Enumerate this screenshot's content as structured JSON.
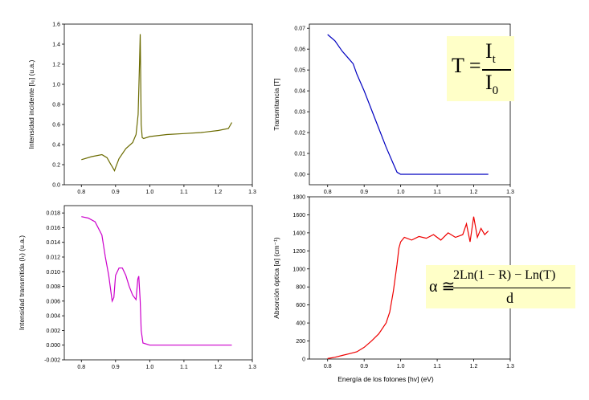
{
  "xlabel_shared": "Energía de los fotones [hv] (eV)",
  "formulas": {
    "transmittance": {
      "lhs": "T =",
      "num": "I",
      "num_sub": "t",
      "den": "I",
      "den_sub": "0"
    },
    "absorption": {
      "lhs": "α ≅",
      "num": "2Ln(1 − R) − Ln(T)",
      "den": "d"
    }
  },
  "chart_data": [
    {
      "id": "incident",
      "type": "line",
      "color": "#6b6b00",
      "ylabel": "Intensidad incidente [I₀] (u.a.)",
      "xlim": [
        0.75,
        1.3
      ],
      "ylim": [
        0.0,
        1.6
      ],
      "xticks": [
        "0.8",
        "0.9",
        "1.0",
        "1.1",
        "1.2",
        "1.3"
      ],
      "yticks": [
        "0.0",
        "0.2",
        "0.4",
        "0.6",
        "0.8",
        "1.0",
        "1.2",
        "1.4",
        "1.6"
      ],
      "x": [
        0.8,
        0.83,
        0.86,
        0.875,
        0.885,
        0.892,
        0.897,
        0.9,
        0.91,
        0.93,
        0.95,
        0.96,
        0.966,
        0.97,
        0.972,
        0.975,
        0.978,
        0.982,
        1.0,
        1.05,
        1.1,
        1.15,
        1.2,
        1.23,
        1.24
      ],
      "y": [
        0.25,
        0.28,
        0.3,
        0.27,
        0.21,
        0.17,
        0.14,
        0.17,
        0.26,
        0.36,
        0.42,
        0.5,
        0.7,
        1.2,
        1.5,
        0.6,
        0.47,
        0.46,
        0.48,
        0.5,
        0.51,
        0.52,
        0.54,
        0.56,
        0.62
      ]
    },
    {
      "id": "transmittance",
      "type": "line",
      "color": "#0000c0",
      "ylabel": "Transmitancia [T]",
      "xlim": [
        0.75,
        1.3
      ],
      "ylim": [
        -0.005,
        0.072
      ],
      "xticks": [
        "0.8",
        "0.9",
        "1.0",
        "1.1",
        "1.2",
        "1.3"
      ],
      "yticks": [
        "0.00",
        "0.01",
        "0.02",
        "0.03",
        "0.04",
        "0.05",
        "0.06",
        "0.07"
      ],
      "x": [
        0.8,
        0.82,
        0.84,
        0.86,
        0.87,
        0.88,
        0.9,
        0.92,
        0.94,
        0.96,
        0.98,
        0.99,
        1.0,
        1.05,
        1.1,
        1.15,
        1.2,
        1.24
      ],
      "y": [
        0.067,
        0.064,
        0.059,
        0.055,
        0.053,
        0.048,
        0.04,
        0.031,
        0.022,
        0.013,
        0.005,
        0.001,
        0.0,
        0.0,
        0.0,
        0.0,
        0.0,
        0.0
      ]
    },
    {
      "id": "transmitted",
      "type": "line",
      "color": "#cc00cc",
      "ylabel": "Intensidad transmitida (Iₜ) (u.a.)",
      "xlim": [
        0.75,
        1.3
      ],
      "ylim": [
        -0.002,
        0.019
      ],
      "xticks": [
        "0.8",
        "0.9",
        "1.0",
        "1.1",
        "1.2",
        "1.3"
      ],
      "yticks": [
        "-0.002",
        "0.000",
        "0.002",
        "0.004",
        "0.006",
        "0.008",
        "0.010",
        "0.012",
        "0.014",
        "0.016",
        "0.018"
      ],
      "x": [
        0.8,
        0.82,
        0.84,
        0.86,
        0.87,
        0.88,
        0.89,
        0.895,
        0.9,
        0.91,
        0.92,
        0.93,
        0.94,
        0.95,
        0.96,
        0.965,
        0.968,
        0.972,
        0.975,
        0.98,
        1.0,
        1.05,
        1.1,
        1.15,
        1.2,
        1.24
      ],
      "y": [
        0.0175,
        0.0173,
        0.0168,
        0.015,
        0.012,
        0.0095,
        0.006,
        0.0065,
        0.0095,
        0.0105,
        0.0105,
        0.0095,
        0.008,
        0.0068,
        0.0062,
        0.009,
        0.0094,
        0.006,
        0.002,
        0.0003,
        0.0,
        0.0,
        0.0,
        0.0,
        0.0,
        0.0
      ]
    },
    {
      "id": "absorption",
      "type": "line",
      "color": "#ee0000",
      "ylabel": "Absorción óptica [α] (cm⁻¹)",
      "xlabel": "Energía de los fotones [hv] (eV)",
      "xlim": [
        0.75,
        1.3
      ],
      "ylim": [
        0,
        1800
      ],
      "xticks": [
        "0.8",
        "0.9",
        "1.0",
        "1.1",
        "1.2",
        "1.3"
      ],
      "yticks": [
        "0",
        "200",
        "400",
        "600",
        "800",
        "1000",
        "1200",
        "1400",
        "1600",
        "1800"
      ],
      "x": [
        0.8,
        0.82,
        0.84,
        0.86,
        0.88,
        0.9,
        0.92,
        0.94,
        0.96,
        0.97,
        0.98,
        0.99,
        0.995,
        1.0,
        1.01,
        1.03,
        1.05,
        1.07,
        1.09,
        1.11,
        1.13,
        1.15,
        1.17,
        1.18,
        1.19,
        1.2,
        1.21,
        1.22,
        1.23,
        1.24
      ],
      "y": [
        5,
        20,
        40,
        60,
        80,
        130,
        200,
        280,
        400,
        520,
        750,
        1050,
        1230,
        1300,
        1350,
        1320,
        1360,
        1340,
        1380,
        1320,
        1400,
        1350,
        1380,
        1500,
        1300,
        1580,
        1350,
        1450,
        1380,
        1420
      ]
    }
  ]
}
